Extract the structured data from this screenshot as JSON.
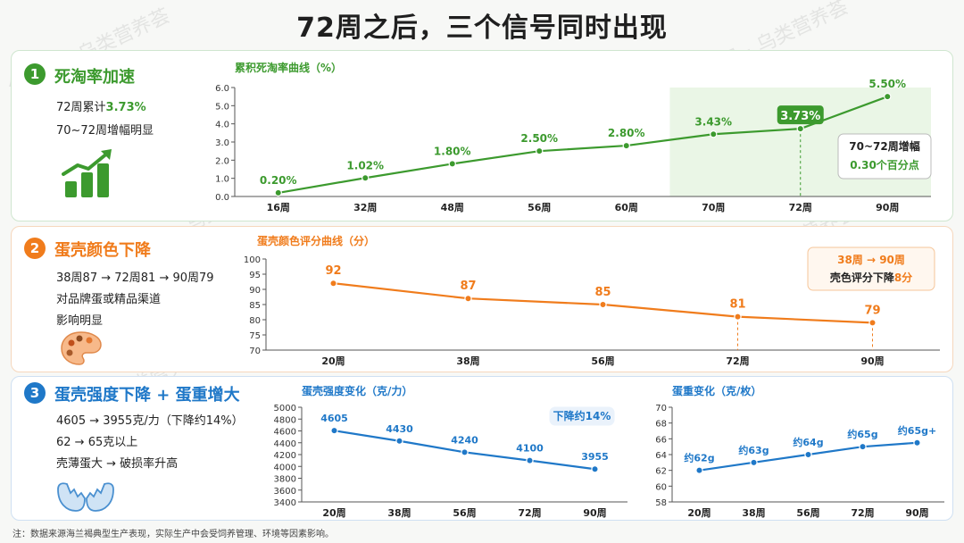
{
  "page_title": "72周之后，三个信号同时出现",
  "watermark": "公众号 · 乌类营养荟",
  "footnote": "注：数据来源海兰褐典型生产表现，实际生产中会受饲养管理、环境等因素影响。",
  "colors": {
    "green": "#3c9a2e",
    "orange": "#f07c1c",
    "blue": "#1f78c8"
  },
  "sections": [
    {
      "number": "1",
      "heading": "死淘率加速",
      "lines": [
        "72周累计",
        "70~72周增幅明显"
      ],
      "highlight": "3.73%",
      "icon": "growth-bar-chart-icon"
    },
    {
      "number": "2",
      "heading": "蛋壳颜色下降",
      "lines": [
        "38周87 → 72周81 → 90周79",
        "对品牌蛋或精品渠道",
        "影响明显"
      ],
      "icon": "color-palette-icon"
    },
    {
      "number": "3",
      "heading": "蛋壳强度下降 + 蛋重增大",
      "lines": [
        "4605 → 3955克/力（下降约14%）",
        "62 → 65克以上",
        "壳薄蛋大 → 破损率升高"
      ],
      "icon": "cracked-egg-icon"
    }
  ],
  "chart_data": [
    {
      "type": "line",
      "title": "累积死淘率曲线（%）",
      "categories": [
        "16周",
        "32周",
        "48周",
        "56周",
        "60周",
        "70周",
        "72周",
        "90周"
      ],
      "values": [
        0.2,
        1.02,
        1.8,
        2.5,
        2.8,
        3.43,
        3.73,
        5.5
      ],
      "labels": [
        "0.20%",
        "1.02%",
        "1.80%",
        "2.50%",
        "2.80%",
        "3.43%",
        "3.73%",
        "5.50%"
      ],
      "ylim": [
        0,
        6
      ],
      "yticks": [
        "0.0",
        "1.0",
        "2.0",
        "3.0",
        "4.0",
        "5.0",
        "6.0"
      ],
      "callout": [
        "70~72周增幅",
        "0.30个百分点"
      ]
    },
    {
      "type": "line",
      "title": "蛋壳颜色评分曲线（分）",
      "categories": [
        "20周",
        "38周",
        "56周",
        "72周",
        "90周"
      ],
      "values": [
        92,
        87,
        85,
        81,
        79
      ],
      "labels": [
        "92",
        "87",
        "85",
        "81",
        "79"
      ],
      "ylim": [
        70,
        100
      ],
      "yticks": [
        "70",
        "75",
        "80",
        "85",
        "90",
        "95",
        "100"
      ],
      "callout": [
        "38周 → 90周",
        "壳色评分下降",
        "8分"
      ]
    },
    {
      "type": "line",
      "title": "蛋壳强度变化（克/力）",
      "categories": [
        "20周",
        "38周",
        "56周",
        "72周",
        "90周"
      ],
      "values": [
        4605,
        4430,
        4240,
        4100,
        3955
      ],
      "labels": [
        "4605",
        "4430",
        "4240",
        "4100",
        "3955"
      ],
      "ylim": [
        3400,
        5000
      ],
      "yticks": [
        "3400",
        "3600",
        "3800",
        "4000",
        "4200",
        "4400",
        "4600",
        "4800",
        "5000"
      ],
      "callout": [
        "下降约14%"
      ]
    },
    {
      "type": "line",
      "title": "蛋重变化（克/枚）",
      "categories": [
        "20周",
        "38周",
        "56周",
        "72周",
        "90周"
      ],
      "values": [
        62,
        63,
        64,
        65,
        65.5
      ],
      "labels": [
        "约62g",
        "约63g",
        "约64g",
        "约65g",
        "约65g+"
      ],
      "ylim": [
        58,
        70
      ],
      "yticks": [
        "58",
        "60",
        "62",
        "64",
        "66",
        "68",
        "70"
      ]
    }
  ]
}
